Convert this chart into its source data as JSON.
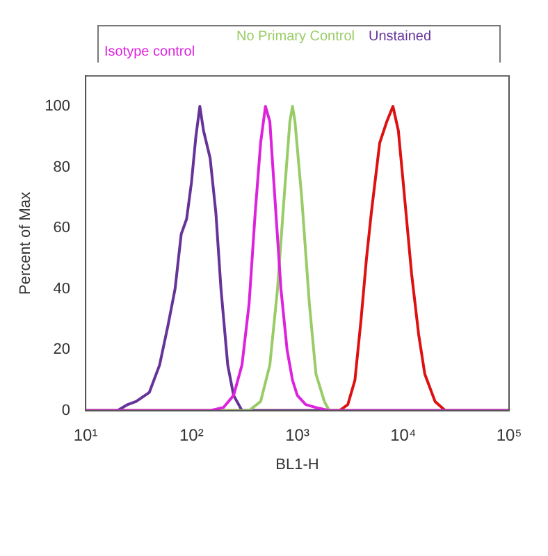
{
  "chart_data": {
    "type": "line",
    "xlabel": "BL1-H",
    "ylabel": "Percent of Max",
    "log": "x",
    "grid": false,
    "legend": "top",
    "marker": "none",
    "line_style": "solid",
    "xlim": [
      10,
      100000
    ],
    "xticks": [
      {
        "value": 10,
        "label": "10¹"
      },
      {
        "value": 100,
        "label": "10²"
      },
      {
        "value": 1000,
        "label": "10³"
      },
      {
        "value": 10000,
        "label": "10⁴"
      },
      {
        "value": 100000,
        "label": "10⁵"
      }
    ],
    "ylim": [
      0,
      110
    ],
    "yticks": [
      0,
      20,
      40,
      60,
      80,
      100
    ],
    "series": [
      {
        "name": "Isotype control",
        "color": "#dd22dd",
        "x": [
          10,
          150,
          200,
          250,
          300,
          350,
          400,
          450,
          500,
          550,
          600,
          700,
          800,
          900,
          1000,
          1200,
          1500,
          2000,
          100000
        ],
        "values": [
          0,
          0,
          1,
          5,
          15,
          35,
          65,
          88,
          100,
          95,
          75,
          40,
          20,
          10,
          5,
          2,
          1,
          0,
          0
        ]
      },
      {
        "name": "No Primary Control",
        "color": "#99cc66",
        "x": [
          10,
          350,
          450,
          550,
          650,
          750,
          850,
          900,
          950,
          1100,
          1300,
          1500,
          1800,
          2000,
          100000
        ],
        "values": [
          0,
          0,
          3,
          15,
          40,
          70,
          95,
          100,
          95,
          70,
          35,
          12,
          3,
          0,
          0
        ]
      },
      {
        "name": "Unstained",
        "color": "#663399",
        "x": [
          10,
          20,
          25,
          30,
          40,
          50,
          60,
          70,
          80,
          90,
          100,
          110,
          120,
          130,
          150,
          170,
          190,
          220,
          250,
          300,
          100000
        ],
        "values": [
          0,
          0,
          2,
          3,
          6,
          15,
          28,
          40,
          58,
          63,
          75,
          90,
          100,
          92,
          83,
          65,
          40,
          15,
          5,
          0,
          0
        ]
      },
      {
        "color": "#dd1111",
        "x": [
          10,
          2500,
          3000,
          3500,
          4000,
          4500,
          5000,
          6000,
          7000,
          8000,
          9000,
          10000,
          12000,
          14000,
          16000,
          20000,
          25000,
          100000
        ],
        "values": [
          0,
          0,
          2,
          10,
          30,
          50,
          65,
          88,
          95,
          100,
          92,
          75,
          45,
          25,
          12,
          3,
          0,
          0
        ]
      }
    ]
  }
}
